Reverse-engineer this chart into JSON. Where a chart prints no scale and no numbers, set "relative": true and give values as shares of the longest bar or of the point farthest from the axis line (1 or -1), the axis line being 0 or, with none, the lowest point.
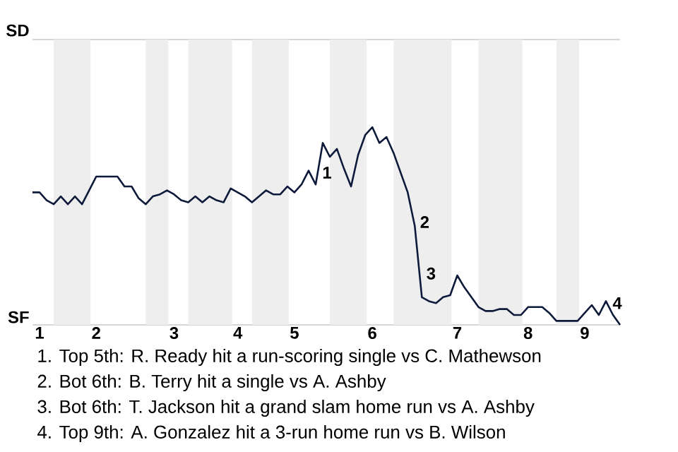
{
  "chart_data": {
    "type": "line",
    "relative": true,
    "categories": [
      null,
      "1",
      null,
      null,
      null,
      null,
      null,
      null,
      null,
      "2",
      null,
      null,
      null,
      null,
      null,
      null,
      null,
      null,
      null,
      null,
      "3",
      null,
      null,
      null,
      null,
      null,
      null,
      null,
      null,
      "4",
      null,
      null,
      null,
      null,
      null,
      null,
      null,
      "5",
      null,
      null,
      null,
      null,
      null,
      null,
      null,
      null,
      null,
      null,
      "6",
      null,
      null,
      null,
      null,
      null,
      null,
      null,
      null,
      null,
      null,
      null,
      "7",
      null,
      null,
      null,
      null,
      null,
      null,
      null,
      null,
      null,
      "8",
      null,
      null,
      null,
      null,
      null,
      null,
      null,
      "9",
      null,
      null,
      null,
      null,
      null
    ],
    "series": [
      {
        "color": "#0d1a3a",
        "values": [
          0.67,
          0.67,
          0.63,
          0.61,
          0.65,
          0.61,
          0.65,
          0.61,
          0.68,
          0.75,
          0.75,
          0.75,
          0.75,
          0.7,
          0.7,
          0.64,
          0.61,
          0.65,
          0.66,
          0.68,
          0.66,
          0.63,
          0.62,
          0.65,
          0.62,
          0.65,
          0.63,
          0.62,
          0.69,
          0.67,
          0.65,
          0.62,
          0.65,
          0.68,
          0.66,
          0.66,
          0.7,
          0.67,
          0.71,
          0.78,
          0.71,
          0.92,
          0.85,
          0.89,
          0.79,
          0.7,
          0.86,
          0.96,
          1,
          0.92,
          0.95,
          0.87,
          0.77,
          0.67,
          0.5,
          0.14,
          0.12,
          0.11,
          0.14,
          0.15,
          0.25,
          0.19,
          0.14,
          0.09,
          0.07,
          0.07,
          0.08,
          0.08,
          0.05,
          0.05,
          0.09,
          0.09,
          0.09,
          0.06,
          0.02,
          0.02,
          0.02,
          0.02,
          0.06,
          0.1,
          0.05,
          0.12,
          0.05,
          0
        ]
      }
    ],
    "annotations": [
      "SD",
      "SF",
      "1",
      "2",
      "3",
      "4",
      "1. Top 5th: R. Ready hit a run-scoring single vs C. Mathewson",
      "2. Bot 6th: B. Terry hit a single vs A. Ashby",
      "3. Bot 6th: T. Jackson hit a grand slam home run vs A. Ashby",
      "4. Top 9th: A. Gonzalez hit a 3-run home run vs B. Wilson"
    ]
  }
}
